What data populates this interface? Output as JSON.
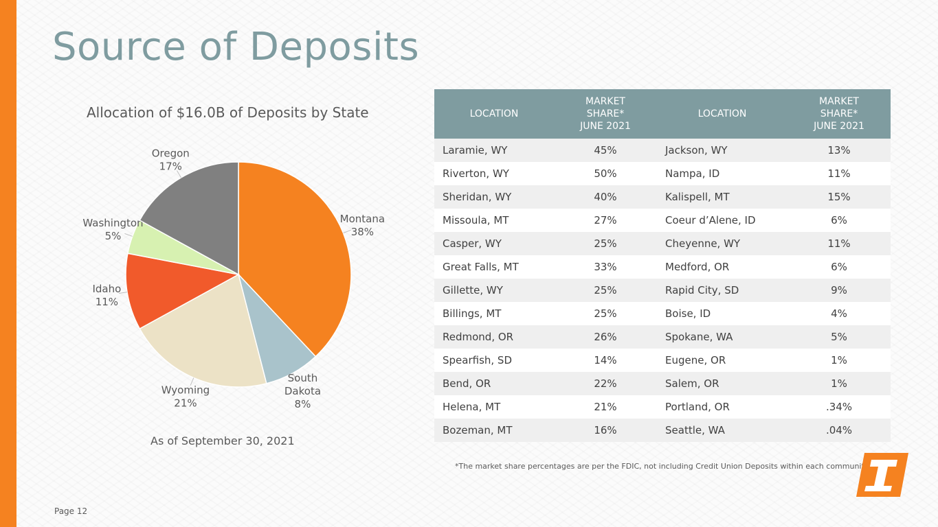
{
  "page": {
    "title": "Source of Deposits",
    "as_of": "As of September 30, 2021",
    "footnote": "*The market share percentages are per the FDIC, not including Credit Union Deposits within each community.",
    "page_number": "Page 12"
  },
  "colors": {
    "accent": "#f58220",
    "title": "#7f9ca0",
    "table_header": "#7f9ca0"
  },
  "chart_data": {
    "type": "pie",
    "title": "Allocation of $16.0B of Deposits by State",
    "start_angle_deg": 0,
    "direction": "clockwise",
    "slices": [
      {
        "label": "Montana",
        "value": 38,
        "display": "38%",
        "color": "#f58220"
      },
      {
        "label": "South Dakota",
        "value": 8,
        "display": "8%",
        "color": "#a9c3cb"
      },
      {
        "label": "Wyoming",
        "value": 21,
        "display": "21%",
        "color": "#ece2c6"
      },
      {
        "label": "Idaho",
        "value": 11,
        "display": "11%",
        "color": "#f15a2b"
      },
      {
        "label": "Washington",
        "value": 5,
        "display": "5%",
        "color": "#d7f1b1"
      },
      {
        "label": "Oregon",
        "value": 17,
        "display": "17%",
        "color": "#808080"
      }
    ]
  },
  "table": {
    "headers": {
      "location": "LOCATION",
      "share_line1": "MARKET",
      "share_line2": "SHARE*",
      "share_line3": "JUNE 2021"
    },
    "rows": [
      {
        "loc1": "Laramie, WY",
        "share1": "45%",
        "loc2": "Jackson, WY",
        "share2": "13%"
      },
      {
        "loc1": "Riverton, WY",
        "share1": "50%",
        "loc2": "Nampa, ID",
        "share2": "11%"
      },
      {
        "loc1": "Sheridan, WY",
        "share1": "40%",
        "loc2": "Kalispell, MT",
        "share2": "15%"
      },
      {
        "loc1": "Missoula, MT",
        "share1": "27%",
        "loc2": "Coeur d’Alene, ID",
        "share2": "6%"
      },
      {
        "loc1": "Casper, WY",
        "share1": "25%",
        "loc2": "Cheyenne, WY",
        "share2": "11%"
      },
      {
        "loc1": "Great Falls, MT",
        "share1": "33%",
        "loc2": "Medford, OR",
        "share2": "6%"
      },
      {
        "loc1": "Gillette, WY",
        "share1": "25%",
        "loc2": "Rapid City, SD",
        "share2": "9%"
      },
      {
        "loc1": "Billings, MT",
        "share1": "25%",
        "loc2": "Boise, ID",
        "share2": "4%"
      },
      {
        "loc1": "Redmond, OR",
        "share1": "26%",
        "loc2": "Spokane, WA",
        "share2": "5%"
      },
      {
        "loc1": "Spearfish, SD",
        "share1": "14%",
        "loc2": "Eugene, OR",
        "share2": "1%"
      },
      {
        "loc1": "Bend, OR",
        "share1": "22%",
        "loc2": "Salem, OR",
        "share2": "1%"
      },
      {
        "loc1": "Helena, MT",
        "share1": "21%",
        "loc2": "Portland, OR",
        "share2": ".34%"
      },
      {
        "loc1": "Bozeman, MT",
        "share1": "16%",
        "loc2": "Seattle, WA",
        "share2": ".04%"
      }
    ]
  }
}
